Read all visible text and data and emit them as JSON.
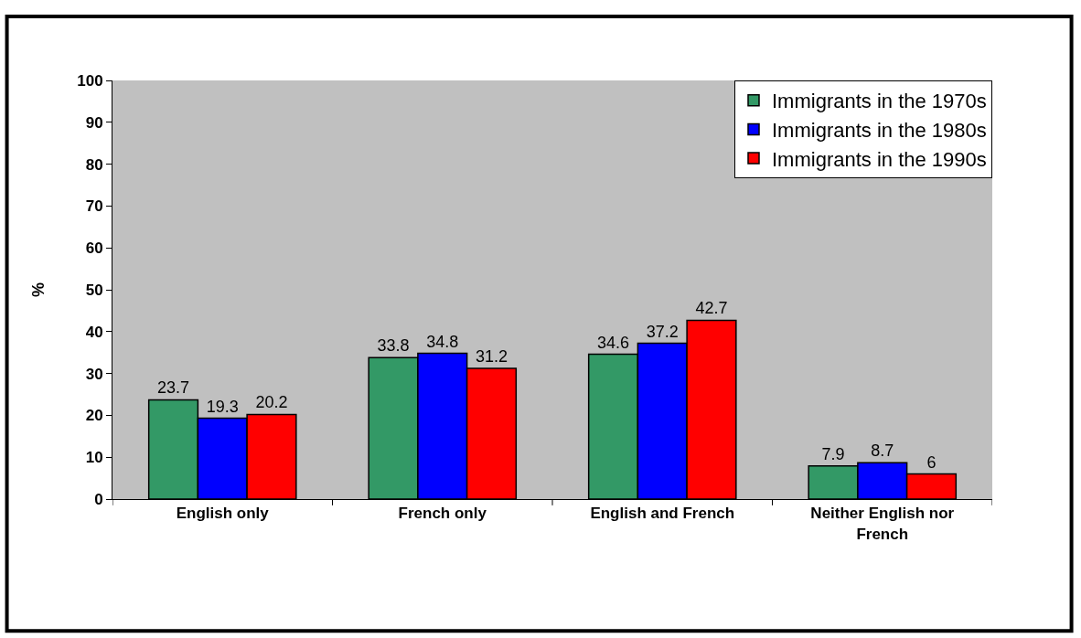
{
  "chart_data": {
    "type": "bar",
    "ylabel": "%",
    "categories": [
      "English only",
      "French only",
      "English and French",
      "Neither English nor French"
    ],
    "series": [
      {
        "name": "Immigrants in the 1970s",
        "color": "#339966",
        "values": [
          23.7,
          33.8,
          34.6,
          7.9
        ]
      },
      {
        "name": "Immigrants in the 1980s",
        "color": "#0000ff",
        "values": [
          19.3,
          34.8,
          37.2,
          8.7
        ]
      },
      {
        "name": "Immigrants in the 1990s",
        "color": "#ff0000",
        "values": [
          20.2,
          31.2,
          42.7,
          6
        ]
      }
    ],
    "ylim": [
      0,
      100
    ],
    "yticks": [
      0,
      10,
      20,
      30,
      40,
      50,
      60,
      70,
      80,
      90,
      100
    ],
    "grid": false,
    "legend": "top right",
    "data_labels": true
  }
}
